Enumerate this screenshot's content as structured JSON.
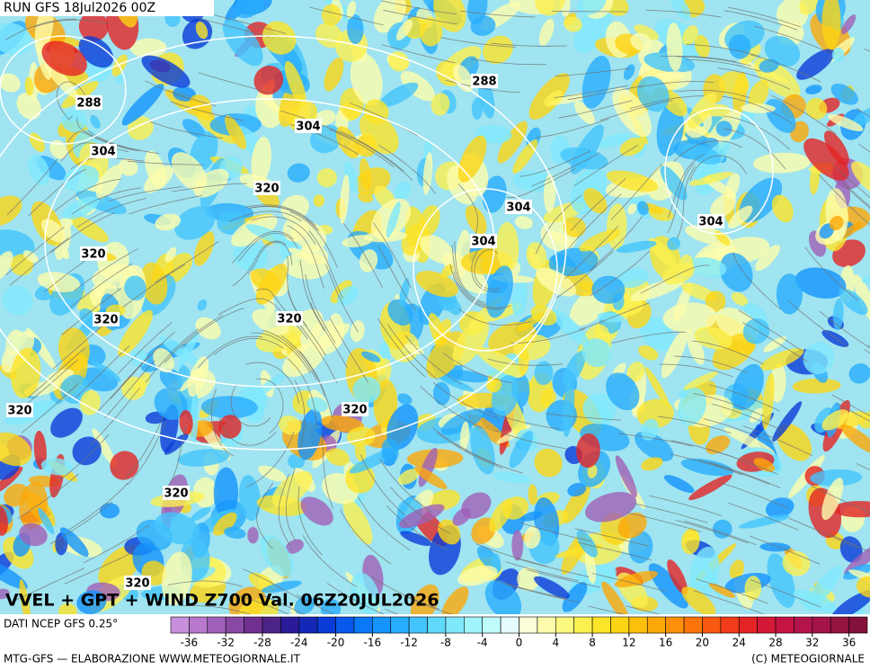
{
  "header": {
    "run": "RUN GFS 18Jul2026 00Z"
  },
  "map": {
    "title": "VVEL + GPT + WIND Z700 Val. 06Z20JUL2026",
    "contour_labels": [
      "288",
      "288",
      "304",
      "304",
      "304",
      "304",
      "304",
      "320",
      "320",
      "320",
      "320",
      "320",
      "320",
      "320",
      "320"
    ]
  },
  "footer": {
    "source": "DATI NCEP GFS 0.25°",
    "credit": "MTG-GFS — ELABORAZIONE WWW.METEOGIORNALE.IT",
    "copyright": "(C) METEOGIORNALE"
  },
  "colorbar": {
    "range": [
      -38,
      38
    ],
    "ticks": [
      -36,
      -32,
      -28,
      -24,
      -20,
      -16,
      -12,
      -8,
      -4,
      0,
      4,
      8,
      12,
      16,
      20,
      24,
      28,
      32,
      36
    ],
    "colors": [
      "#c890dc",
      "#b878cc",
      "#a060b8",
      "#8848a4",
      "#703090",
      "#4c2488",
      "#2a1c98",
      "#1428b8",
      "#0a3cd8",
      "#0858ec",
      "#0a78f8",
      "#1494fc",
      "#28acfc",
      "#44c4fc",
      "#60d8fc",
      "#80e8fc",
      "#a0f4fc",
      "#c0fcfc",
      "#e4fcfc",
      "#fcfcd8",
      "#fcfcac",
      "#fcf880",
      "#fcf050",
      "#fce428",
      "#fcd414",
      "#fcc00c",
      "#fca808",
      "#fc9008",
      "#fc7408",
      "#f85810",
      "#f03c18",
      "#e42424",
      "#d41838",
      "#c41444",
      "#b4144c",
      "#a41448",
      "#941440",
      "#84103c"
    ]
  }
}
